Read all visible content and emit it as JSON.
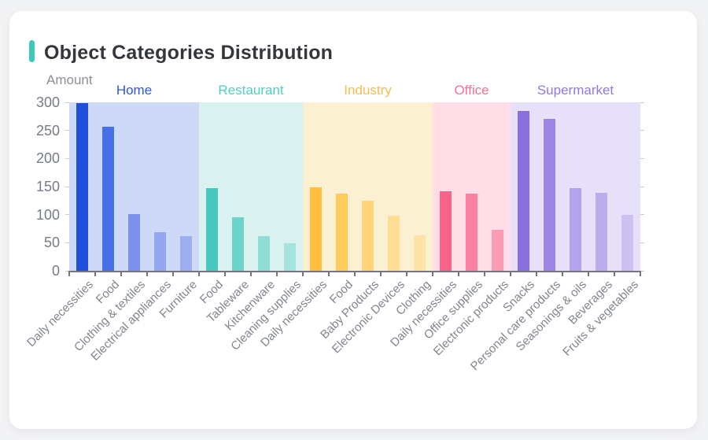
{
  "page": {
    "background": "#F2F3F5",
    "card_background": "#FFFFFF"
  },
  "header": {
    "title": "Object Categories Distribution",
    "accent_color": "#3EC8B8",
    "title_color": "#33373D"
  },
  "chart_data": {
    "type": "bar",
    "title": "Object Categories Distribution",
    "xlabel": "",
    "ylabel": "Amount",
    "ylim": [
      0,
      300
    ],
    "yticks": [
      0,
      50,
      100,
      150,
      200,
      250,
      300
    ],
    "grid": false,
    "legend_position": "none",
    "groups": [
      {
        "name": "Home",
        "label_color": "#2D55E8",
        "band_color": "#CED9F7",
        "bars": [
          {
            "label": "Daily necessities",
            "value": 298,
            "color": "#1E50DC"
          },
          {
            "label": "Food",
            "value": 256,
            "color": "#4670E6"
          },
          {
            "label": "Clothing & textiles",
            "value": 101,
            "color": "#7B91EB"
          },
          {
            "label": "Electrical appliances",
            "value": 68,
            "color": "#93A6EF"
          },
          {
            "label": "Furniture",
            "value": 62,
            "color": "#9DAEF0"
          }
        ]
      },
      {
        "name": "Restaurant",
        "label_color": "#4ED0BE",
        "band_color": "#D9F2EF",
        "bars": [
          {
            "label": "Food",
            "value": 147,
            "color": "#46C8BE"
          },
          {
            "label": "Tableware",
            "value": 95,
            "color": "#6BD3C9"
          },
          {
            "label": "Kitchenware",
            "value": 62,
            "color": "#8FDDD6"
          },
          {
            "label": "Cleaning supplies",
            "value": 49,
            "color": "#A5E3DD"
          }
        ]
      },
      {
        "name": "Industry",
        "label_color": "#F2BE4F",
        "band_color": "#FCF0D3",
        "bars": [
          {
            "label": "Daily necessities",
            "value": 149,
            "color": "#FFC13D"
          },
          {
            "label": "Food",
            "value": 138,
            "color": "#FFCC5C"
          },
          {
            "label": "Baby Products",
            "value": 125,
            "color": "#FFD47A"
          },
          {
            "label": "Electronic Devices",
            "value": 98,
            "color": "#FFDD94"
          },
          {
            "label": "Clothing",
            "value": 63,
            "color": "#FFE3A6"
          }
        ]
      },
      {
        "name": "Office",
        "label_color": "#FA6E96",
        "band_color": "#FFDEE8",
        "bars": [
          {
            "label": "Daily necessities",
            "value": 142,
            "color": "#FA6488"
          },
          {
            "label": "Office supplies",
            "value": 138,
            "color": "#FB81A0"
          },
          {
            "label": "Electronic products",
            "value": 73,
            "color": "#FC9CB4"
          }
        ]
      },
      {
        "name": "Supermarket",
        "label_color": "#8F78E3",
        "band_color": "#E6E1F8",
        "bars": [
          {
            "label": "Snacks",
            "value": 284,
            "color": "#8A6EE0"
          },
          {
            "label": "Personal care products",
            "value": 270,
            "color": "#9D85E5"
          },
          {
            "label": "Seasonings & oils",
            "value": 147,
            "color": "#B4A3EC"
          },
          {
            "label": "Beverages",
            "value": 139,
            "color": "#BCABEE"
          },
          {
            "label": "Fruits & vegetables",
            "value": 100,
            "color": "#CDC1F3"
          }
        ]
      }
    ]
  }
}
